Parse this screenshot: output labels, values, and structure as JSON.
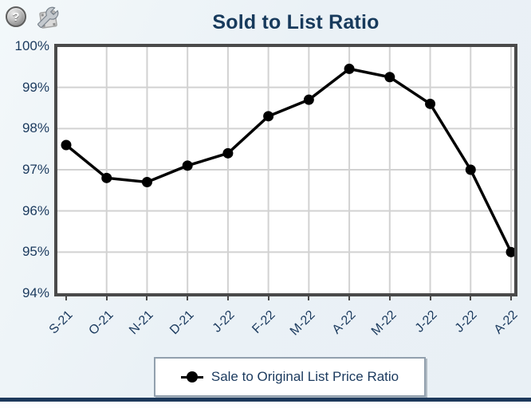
{
  "header": {
    "title": "Sold to List Ratio",
    "help_icon": "question-mark-sphere",
    "settings_icon": "wrench"
  },
  "chart_data": {
    "type": "line",
    "title": "Sold to List Ratio",
    "x_labels": [
      "S-21",
      "O-21",
      "N-21",
      "D-21",
      "J-22",
      "F-22",
      "M-22",
      "A-22",
      "M-22",
      "J-22",
      "J-22",
      "A-22"
    ],
    "y_tick_labels": [
      "100%",
      "99%",
      "98%",
      "97%",
      "96%",
      "95%",
      "94%"
    ],
    "y_tick_values": [
      100,
      99,
      98,
      97,
      96,
      95,
      94
    ],
    "ylim": [
      94,
      100
    ],
    "grid": true,
    "legend_position": "bottom",
    "series": [
      {
        "name": "Sale to Original List Price Ratio",
        "marker": "circle",
        "color": "#000000",
        "values": [
          97.6,
          96.8,
          96.7,
          97.1,
          97.4,
          98.3,
          98.7,
          99.45,
          99.25,
          98.6,
          97.0,
          95.0
        ]
      }
    ]
  },
  "legend": {
    "label": "Sale to Original List Price Ratio"
  },
  "colors": {
    "title_text": "#173a5c",
    "axis_text": "#1b3a5e",
    "plot_border": "#4a4a4a",
    "gridline": "#d2d2d2",
    "line": "#000000",
    "background": "#ecf2f6",
    "bottom_bar": "#1d395b",
    "legend_border": "#92a0ae"
  }
}
